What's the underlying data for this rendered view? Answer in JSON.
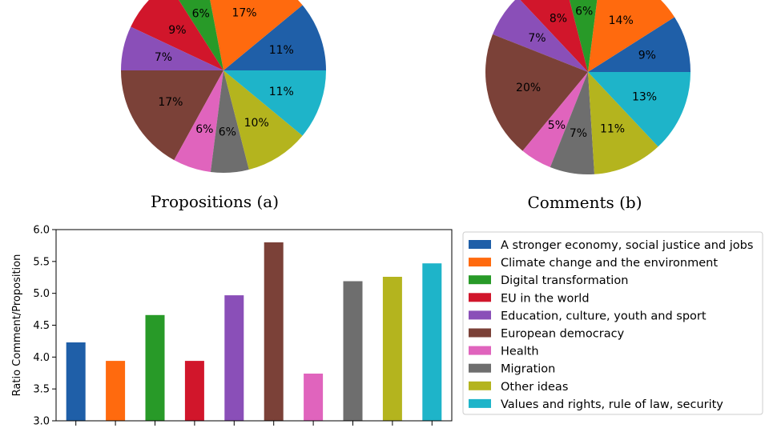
{
  "chart_data": [
    {
      "type": "pie",
      "caption": "Propositions (a)",
      "categories": [
        "A stronger economy, social justice and jobs",
        "Climate change and the environment",
        "Digital transformation",
        "EU in the world",
        "Education, culture, youth and sport",
        "European democracy",
        "Health",
        "Migration",
        "Other ideas",
        "Values and rights, rule of law, security"
      ],
      "values": [
        11,
        17,
        6,
        9,
        7,
        17,
        6,
        6,
        10,
        11
      ],
      "labels": [
        "11%",
        "17%",
        "6%",
        "9%",
        "7%",
        "17%",
        "6%",
        "6%",
        "10%",
        "11%"
      ]
    },
    {
      "type": "pie",
      "caption": "Comments (b)",
      "categories": [
        "A stronger economy, social justice and jobs",
        "Climate change and the environment",
        "Digital transformation",
        "EU in the world",
        "Education, culture, youth and sport",
        "European democracy",
        "Health",
        "Migration",
        "Other ideas",
        "Values and rights, rule of law, security"
      ],
      "values": [
        9,
        14,
        6,
        8,
        7,
        20,
        5,
        7,
        11,
        13
      ],
      "labels": [
        "9%",
        "14%",
        "6%",
        "8%",
        "7%",
        "20%",
        "5%",
        "7%",
        "11%",
        "13%"
      ]
    },
    {
      "type": "bar",
      "categories": [
        "A stronger economy, social justice and jobs",
        "Climate change and the environment",
        "Digital transformation",
        "EU in the world",
        "Education, culture, youth and sport",
        "European democracy",
        "Health",
        "Migration",
        "Other ideas",
        "Values and rights, rule of law, security"
      ],
      "values": [
        4.23,
        3.94,
        4.66,
        3.94,
        4.97,
        5.8,
        3.74,
        5.19,
        5.26,
        5.47
      ],
      "ylabel": "Ratio Comment/Proposition",
      "ylim": [
        3.0,
        6.0
      ],
      "yticks": [
        "3.0",
        "3.5",
        "4.0",
        "4.5",
        "5.0",
        "5.5",
        "6.0"
      ],
      "legend": "right"
    }
  ],
  "colors": [
    "#1f5fa8",
    "#ff6a0e",
    "#289a28",
    "#d1162b",
    "#8a4fb8",
    "#7b4138",
    "#e064bd",
    "#6e6e6e",
    "#b4b41e",
    "#1eb4c9"
  ]
}
